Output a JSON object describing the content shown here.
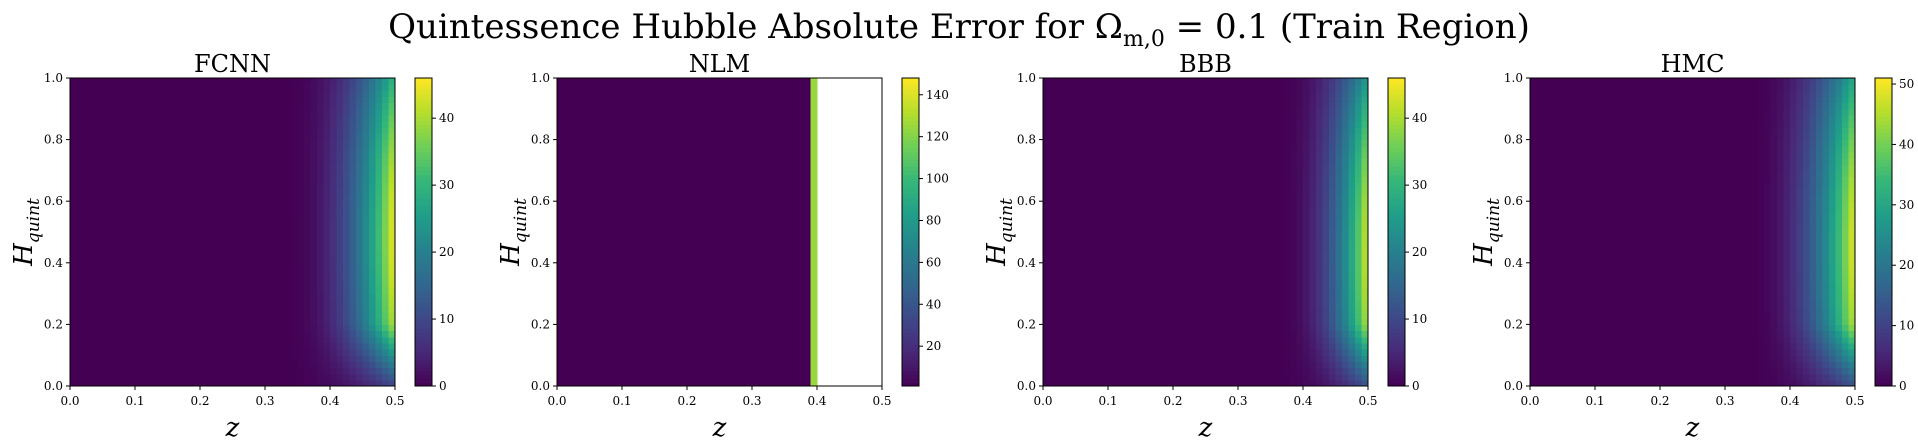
{
  "figure": {
    "suptitle": "Quintessence Hubble Absolute Error for Ω",
    "suptitle_sub": "m,0",
    "suptitle_rest": " = 0.1 (Train Region)"
  },
  "colormap": "viridis",
  "colormap_stops": [
    "#440154",
    "#482878",
    "#3e4989",
    "#31688e",
    "#26828e",
    "#1f9e89",
    "#35b779",
    "#6ece58",
    "#b5de2b",
    "#fde725"
  ],
  "chart_data": [
    {
      "type": "heatmap",
      "title": "FCNN",
      "xlabel": "z",
      "ylabel": "H",
      "ylabel_sub": "quint",
      "xlim": [
        0.0,
        0.5
      ],
      "ylim": [
        0.0,
        1.0
      ],
      "xticks": [
        "0.0",
        "0.1",
        "0.2",
        "0.3",
        "0.4",
        "0.5"
      ],
      "yticks": [
        "0.0",
        "0.2",
        "0.4",
        "0.6",
        "0.8",
        "1.0"
      ],
      "colorbar": {
        "min": 0,
        "max": 46,
        "ticks": [
          0,
          10,
          20,
          30,
          40
        ]
      },
      "field": {
        "peak": 46,
        "peak_y": 0.48,
        "onset_z": 0.33,
        "power": 2.4,
        "low_y_suppression": 0.28,
        "nan_above_z": null
      }
    },
    {
      "type": "heatmap",
      "title": "NLM",
      "xlabel": "z",
      "ylabel": "H",
      "ylabel_sub": "quint",
      "xlim": [
        0.0,
        0.5
      ],
      "ylim": [
        0.0,
        1.0
      ],
      "xticks": [
        "0.0",
        "0.1",
        "0.2",
        "0.3",
        "0.4",
        "0.5"
      ],
      "yticks": [
        "0.0",
        "0.2",
        "0.4",
        "0.6",
        "0.8",
        "1.0"
      ],
      "colorbar": {
        "min": 1,
        "max": 148,
        "ticks": [
          20,
          40,
          60,
          80,
          100,
          120,
          140
        ]
      },
      "field": {
        "peak": 3,
        "peak_y": 0.5,
        "onset_z": 0.3,
        "power": 2.0,
        "low_y_suppression": 0.2,
        "nan_above_z": 0.4,
        "edge_value": 125
      }
    },
    {
      "type": "heatmap",
      "title": "BBB",
      "xlabel": "z",
      "ylabel": "H",
      "ylabel_sub": "quint",
      "xlim": [
        0.0,
        0.5
      ],
      "ylim": [
        0.0,
        1.0
      ],
      "xticks": [
        "0.0",
        "0.1",
        "0.2",
        "0.3",
        "0.4",
        "0.5"
      ],
      "yticks": [
        "0.0",
        "0.2",
        "0.4",
        "0.6",
        "0.8",
        "1.0"
      ],
      "colorbar": {
        "min": 0,
        "max": 46,
        "ticks": [
          0,
          10,
          20,
          30,
          40
        ]
      },
      "field": {
        "peak": 44,
        "peak_y": 0.42,
        "onset_z": 0.36,
        "power": 2.4,
        "low_y_suppression": 0.26,
        "nan_above_z": null
      }
    },
    {
      "type": "heatmap",
      "title": "HMC",
      "xlabel": "z",
      "ylabel": "H",
      "ylabel_sub": "quint",
      "xlim": [
        0.0,
        0.5
      ],
      "ylim": [
        0.0,
        1.0
      ],
      "xticks": [
        "0.0",
        "0.1",
        "0.2",
        "0.3",
        "0.4",
        "0.5"
      ],
      "yticks": [
        "0.0",
        "0.2",
        "0.4",
        "0.6",
        "0.8",
        "1.0"
      ],
      "colorbar": {
        "min": 0,
        "max": 51,
        "ticks": [
          0,
          10,
          20,
          30,
          40,
          50
        ]
      },
      "field": {
        "peak": 50,
        "peak_y": 0.45,
        "onset_z": 0.34,
        "power": 2.2,
        "low_y_suppression": 0.26,
        "nan_above_z": null
      }
    }
  ]
}
